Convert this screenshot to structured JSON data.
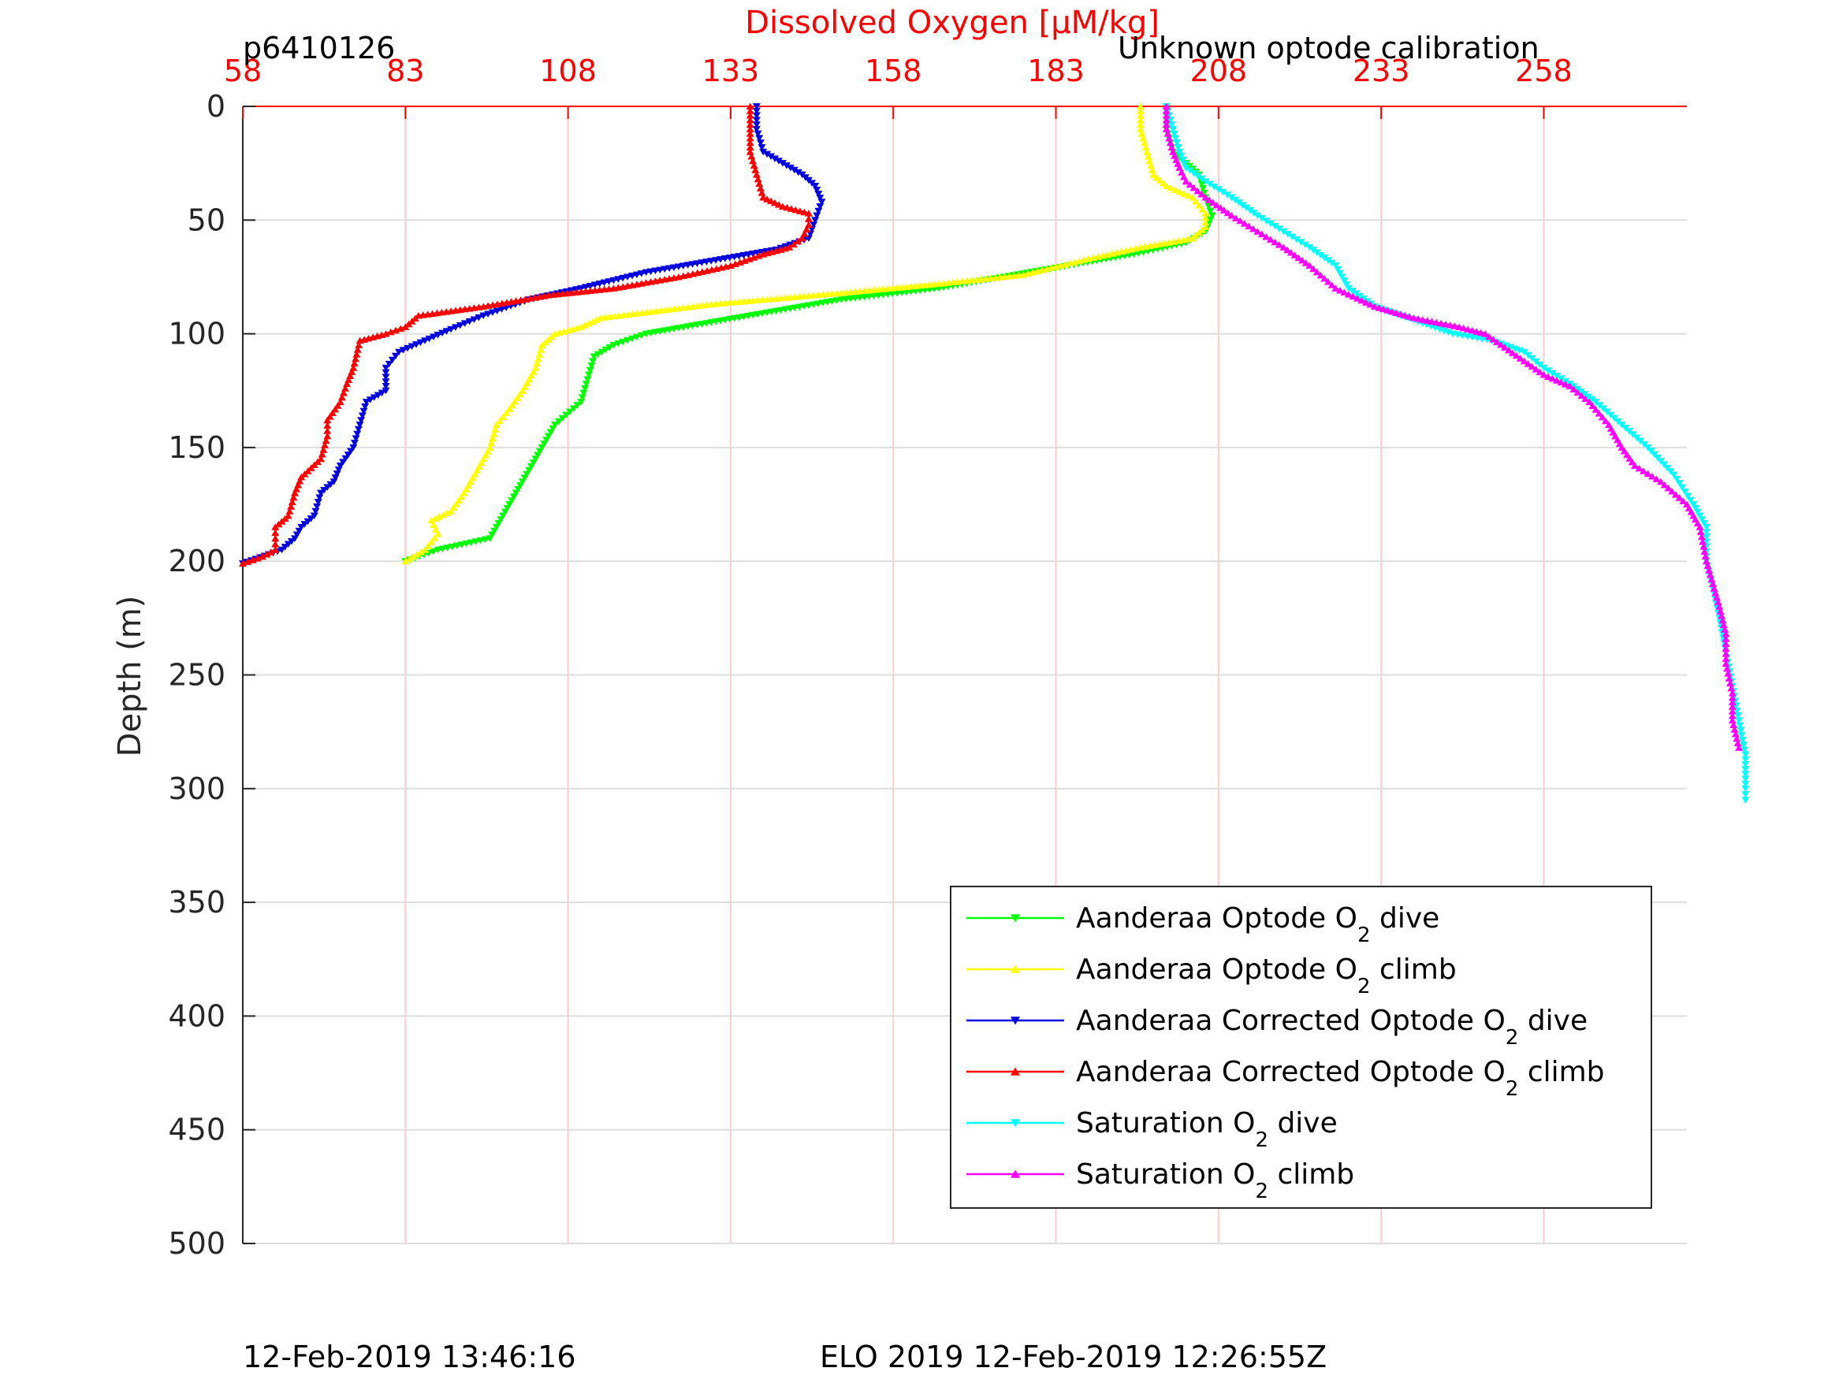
{
  "header": {
    "id_label": "p6410126",
    "calibration_note": "Unknown optode calibration"
  },
  "footer": {
    "left_timestamp": "12-Feb-2019 13:46:16",
    "right_caption": "ELO 2019 12-Feb-2019 12:26:55Z"
  },
  "chart_data": {
    "type": "line",
    "title": "Dissolved Oxygen [μM/kg]",
    "xlabel": "Dissolved Oxygen [μM/kg]",
    "ylabel": "Depth (m)",
    "xlim": [
      58,
      280
    ],
    "ylim": [
      500,
      0
    ],
    "y_reversed": true,
    "x_axis_position": "top",
    "x_ticks": [
      58,
      83,
      108,
      133,
      158,
      183,
      208,
      233,
      258
    ],
    "x_tick_labels": [
      "58",
      "83",
      "108",
      "133",
      "158",
      "183",
      "208",
      "233",
      "258"
    ],
    "y_ticks": [
      0,
      50,
      100,
      150,
      200,
      250,
      300,
      350,
      400,
      450,
      500
    ],
    "y_tick_labels": [
      "0",
      "50",
      "100",
      "150",
      "200",
      "250",
      "300",
      "350",
      "400",
      "450",
      "500"
    ],
    "grid": true,
    "legend_position": "bottom-right",
    "colors": {
      "title": "#ff0000",
      "axis_x": "#ff0000",
      "grid_x": "#ffcccc",
      "grid_y": "#dddddd"
    },
    "series": [
      {
        "name": "Aanderaa Optode O2 dive",
        "label_prefix": "Aanderaa Optode O",
        "label_sub": "2",
        "label_suffix": " dive",
        "color": "#00ff00",
        "marker": "down",
        "points": [
          [
            200,
            0
          ],
          [
            200,
            10
          ],
          [
            201,
            20
          ],
          [
            203,
            25
          ],
          [
            205,
            30
          ],
          [
            206,
            40
          ],
          [
            207,
            48
          ],
          [
            206,
            55
          ],
          [
            203,
            60
          ],
          [
            195,
            65
          ],
          [
            185,
            70
          ],
          [
            175,
            75
          ],
          [
            165,
            80
          ],
          [
            150,
            85
          ],
          [
            140,
            90
          ],
          [
            130,
            95
          ],
          [
            120,
            100
          ],
          [
            115,
            105
          ],
          [
            112,
            110
          ],
          [
            111,
            120
          ],
          [
            110,
            130
          ],
          [
            106,
            140
          ],
          [
            104,
            150
          ],
          [
            102,
            160
          ],
          [
            100,
            170
          ],
          [
            98,
            180
          ],
          [
            96,
            190
          ],
          [
            88,
            195
          ],
          [
            83,
            200
          ]
        ]
      },
      {
        "name": "Aanderaa Optode O2 climb",
        "label_prefix": "Aanderaa Optode O",
        "label_sub": "2",
        "label_suffix": " climb",
        "color": "#ffff00",
        "marker": "up",
        "points": [
          [
            83,
            200
          ],
          [
            86,
            195
          ],
          [
            88,
            188
          ],
          [
            87,
            182
          ],
          [
            90,
            178
          ],
          [
            92,
            170
          ],
          [
            94,
            160
          ],
          [
            96,
            150
          ],
          [
            97,
            140
          ],
          [
            99,
            133
          ],
          [
            101,
            125
          ],
          [
            103,
            115
          ],
          [
            104,
            105
          ],
          [
            106,
            100
          ],
          [
            110,
            97
          ],
          [
            113,
            93
          ],
          [
            130,
            87
          ],
          [
            150,
            82
          ],
          [
            165,
            78
          ],
          [
            178,
            74
          ],
          [
            188,
            67
          ],
          [
            196,
            62
          ],
          [
            204,
            58
          ],
          [
            206,
            53
          ],
          [
            206,
            47
          ],
          [
            204,
            40
          ],
          [
            200,
            35
          ],
          [
            198,
            30
          ],
          [
            197,
            20
          ],
          [
            196,
            10
          ],
          [
            196,
            0
          ]
        ]
      },
      {
        "name": "Aanderaa Corrected Optode O2 dive",
        "label_prefix": "Aanderaa Corrected Optode O",
        "label_sub": "2",
        "label_suffix": " dive",
        "color": "#0000dd",
        "marker": "down",
        "points": [
          [
            137,
            0
          ],
          [
            137,
            10
          ],
          [
            138,
            20
          ],
          [
            141,
            25
          ],
          [
            144,
            30
          ],
          [
            146,
            35
          ],
          [
            147,
            42
          ],
          [
            146,
            50
          ],
          [
            145,
            58
          ],
          [
            140,
            63
          ],
          [
            130,
            68
          ],
          [
            120,
            73
          ],
          [
            110,
            80
          ],
          [
            102,
            85
          ],
          [
            95,
            92
          ],
          [
            90,
            98
          ],
          [
            86,
            103
          ],
          [
            82,
            108
          ],
          [
            80,
            115
          ],
          [
            80,
            125
          ],
          [
            77,
            130
          ],
          [
            76,
            140
          ],
          [
            75,
            150
          ],
          [
            73,
            158
          ],
          [
            72,
            165
          ],
          [
            70,
            170
          ],
          [
            69,
            180
          ],
          [
            67,
            185
          ],
          [
            66,
            190
          ],
          [
            64,
            195
          ],
          [
            60,
            199
          ],
          [
            58,
            201
          ]
        ]
      },
      {
        "name": "Aanderaa Corrected Optode O2 climb",
        "label_prefix": "Aanderaa Corrected Optode O",
        "label_sub": "2",
        "label_suffix": " climb",
        "color": "#ff0000",
        "marker": "up",
        "points": [
          [
            58,
            201
          ],
          [
            61,
            198
          ],
          [
            63,
            195
          ],
          [
            63,
            190
          ],
          [
            63,
            185
          ],
          [
            65,
            180
          ],
          [
            66,
            170
          ],
          [
            67,
            163
          ],
          [
            70,
            155
          ],
          [
            71,
            145
          ],
          [
            71,
            138
          ],
          [
            73,
            130
          ],
          [
            74,
            122
          ],
          [
            75,
            115
          ],
          [
            76,
            103
          ],
          [
            80,
            100
          ],
          [
            83,
            97
          ],
          [
            85,
            92
          ],
          [
            95,
            88
          ],
          [
            105,
            83
          ],
          [
            115,
            80
          ],
          [
            125,
            75
          ],
          [
            133,
            70
          ],
          [
            138,
            65
          ],
          [
            142,
            62
          ],
          [
            144,
            58
          ],
          [
            145,
            52
          ],
          [
            145,
            47
          ],
          [
            141,
            44
          ],
          [
            138,
            40
          ],
          [
            137,
            30
          ],
          [
            136,
            20
          ],
          [
            136,
            10
          ],
          [
            136,
            0
          ]
        ]
      },
      {
        "name": "Saturation O2 dive",
        "label_prefix": "Saturation O",
        "label_sub": "2",
        "label_suffix": " dive",
        "color": "#00ffff",
        "marker": "down",
        "points": [
          [
            200,
            0
          ],
          [
            201,
            10
          ],
          [
            202,
            20
          ],
          [
            203,
            27
          ],
          [
            206,
            33
          ],
          [
            210,
            40
          ],
          [
            214,
            48
          ],
          [
            218,
            55
          ],
          [
            222,
            62
          ],
          [
            226,
            70
          ],
          [
            228,
            80
          ],
          [
            232,
            88
          ],
          [
            238,
            94
          ],
          [
            244,
            100
          ],
          [
            250,
            103
          ],
          [
            255,
            108
          ],
          [
            258,
            115
          ],
          [
            262,
            122
          ],
          [
            266,
            130
          ],
          [
            270,
            140
          ],
          [
            274,
            150
          ],
          [
            278,
            162
          ],
          [
            281,
            175
          ],
          [
            283,
            185
          ],
          [
            283,
            200
          ],
          [
            284,
            212
          ],
          [
            285,
            225
          ],
          [
            286,
            240
          ],
          [
            287,
            255
          ],
          [
            288,
            270
          ],
          [
            289,
            285
          ],
          [
            289,
            300
          ],
          [
            289,
            305
          ]
        ]
      },
      {
        "name": "Saturation O2 climb",
        "label_prefix": "Saturation O",
        "label_sub": "2",
        "label_suffix": " climb",
        "color": "#ff00ff",
        "marker": "up",
        "points": [
          [
            288,
            282
          ],
          [
            287,
            270
          ],
          [
            287,
            258
          ],
          [
            286,
            245
          ],
          [
            286,
            232
          ],
          [
            285,
            220
          ],
          [
            284,
            210
          ],
          [
            283,
            200
          ],
          [
            282,
            185
          ],
          [
            280,
            175
          ],
          [
            276,
            165
          ],
          [
            272,
            158
          ],
          [
            270,
            150
          ],
          [
            268,
            140
          ],
          [
            265,
            130
          ],
          [
            262,
            123
          ],
          [
            258,
            118
          ],
          [
            255,
            112
          ],
          [
            252,
            106
          ],
          [
            249,
            100
          ],
          [
            245,
            97
          ],
          [
            238,
            93
          ],
          [
            232,
            88
          ],
          [
            226,
            80
          ],
          [
            222,
            70
          ],
          [
            218,
            62
          ],
          [
            214,
            55
          ],
          [
            210,
            48
          ],
          [
            206,
            40
          ],
          [
            203,
            33
          ],
          [
            202,
            27
          ],
          [
            201,
            20
          ],
          [
            200,
            10
          ],
          [
            200,
            0
          ]
        ]
      }
    ]
  }
}
